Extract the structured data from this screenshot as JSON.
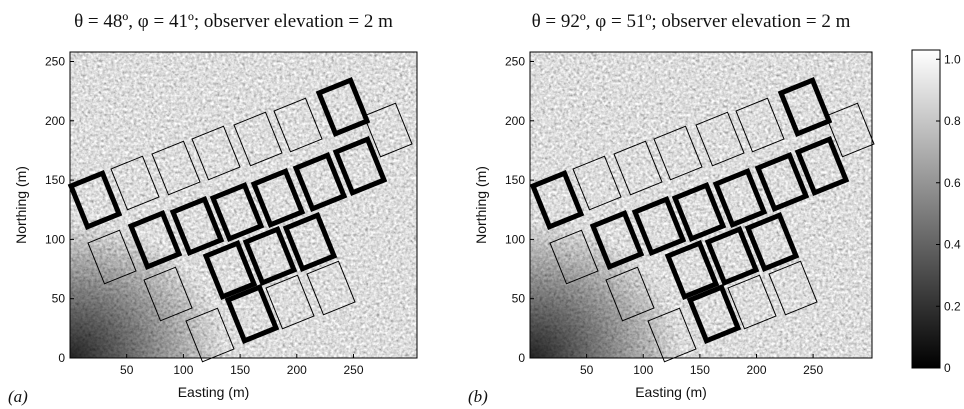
{
  "chart_data": [
    {
      "type": "image",
      "title": "θ = 48º, φ = 41º; observer elevation = 2 m",
      "panel_label": "(a)",
      "x_label": "Easting (m)",
      "y_label": "Northing (m)",
      "xlim": [
        0,
        306
      ],
      "ylim": [
        0,
        258
      ],
      "xticks": [
        50,
        100,
        150,
        200,
        250
      ],
      "yticks": [
        0,
        50,
        100,
        150,
        200,
        250
      ]
    },
    {
      "type": "image",
      "title": "θ = 92º, φ = 51º; observer elevation = 2 m",
      "panel_label": "(b)",
      "x_label": "Easting (m)",
      "y_label": "Northing (m)",
      "xlim": [
        0,
        302
      ],
      "ylim": [
        0,
        258
      ],
      "xticks": [
        50,
        100,
        150,
        200,
        250
      ],
      "yticks": [
        0,
        50,
        100,
        150,
        200,
        250
      ]
    },
    {
      "type": "colorbar",
      "ylim": [
        0,
        1.03
      ],
      "yticks": [
        0,
        0.2,
        0.4,
        0.6,
        0.8,
        {
          "value": 1,
          "label": "1.0"
        }
      ]
    }
  ]
}
